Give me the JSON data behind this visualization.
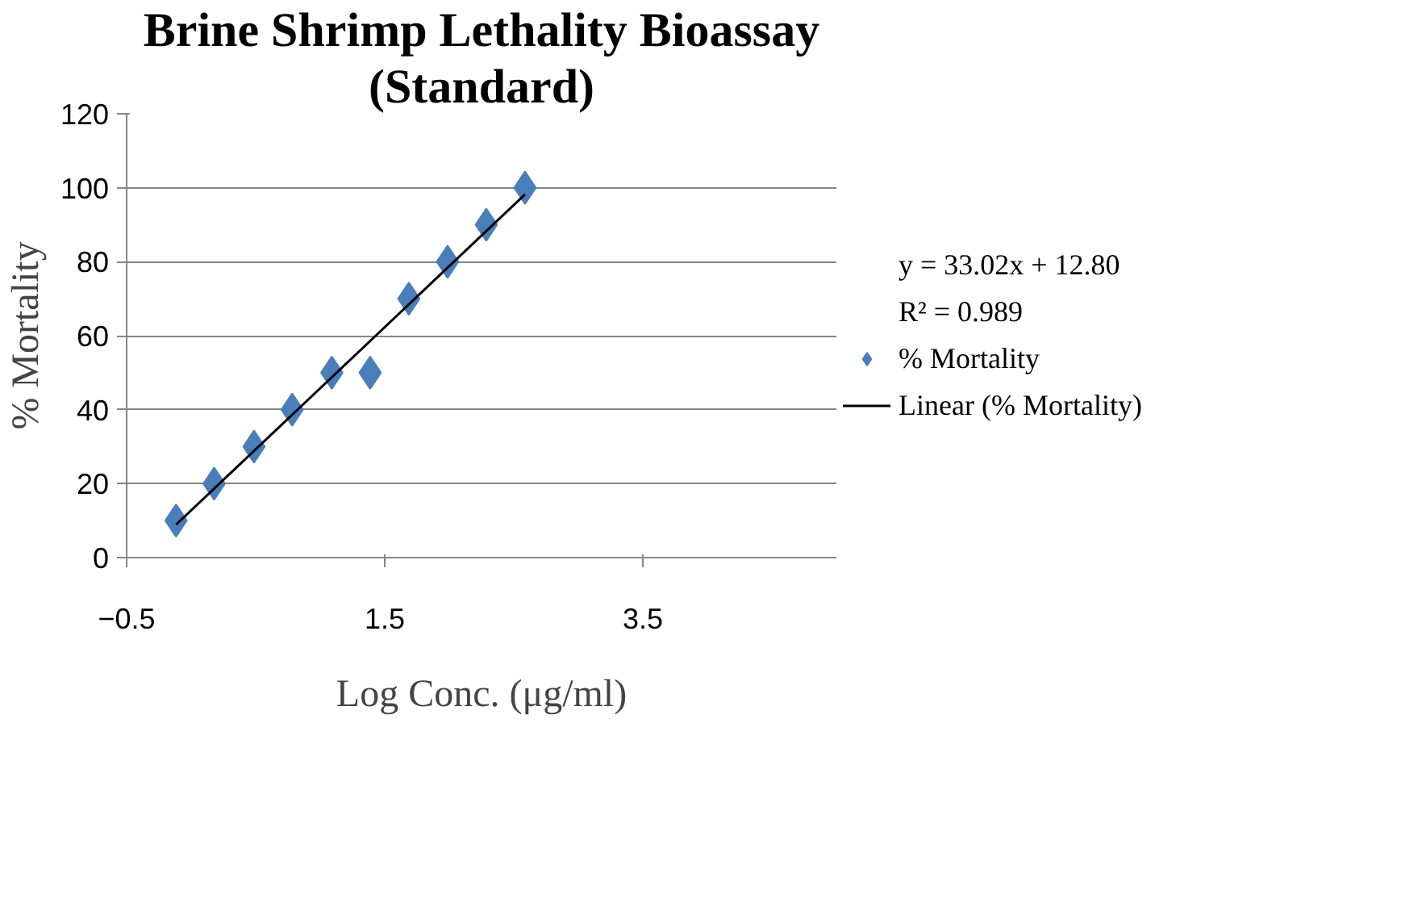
{
  "chart_data": {
    "type": "scatter",
    "title": "Brine Shrimp Lethality Bioassay",
    "subtitle": "(Standard)",
    "xlabel": "Log Conc. (μg/ml)",
    "ylabel": "% Mortality",
    "series": [
      {
        "name": "% Mortality",
        "color": "#4a7ebb",
        "marker": "diamond",
        "x": [
          -0.117,
          0.178,
          0.487,
          0.783,
          1.09,
          1.387,
          1.687,
          1.987,
          2.287,
          2.587
        ],
        "values": [
          10,
          20,
          30,
          40,
          50,
          50,
          70,
          80,
          90,
          100
        ]
      },
      {
        "name": "Linear (% Mortality)",
        "type": "line",
        "color": "#000000",
        "line_style": "solid",
        "x": [
          -0.117,
          2.587
        ],
        "values": [
          8.9,
          98.2
        ]
      }
    ],
    "annotations": [
      "y = 33.02x + 12.80",
      "R² = 0.989"
    ],
    "xlim": [
      -0.5,
      5
    ],
    "xticks": [
      -0.5,
      1.5,
      3.5
    ],
    "ylim": [
      0,
      120
    ],
    "yticks": [
      0,
      20,
      40,
      60,
      80,
      100,
      120
    ],
    "grid": "y",
    "legend": "right"
  }
}
